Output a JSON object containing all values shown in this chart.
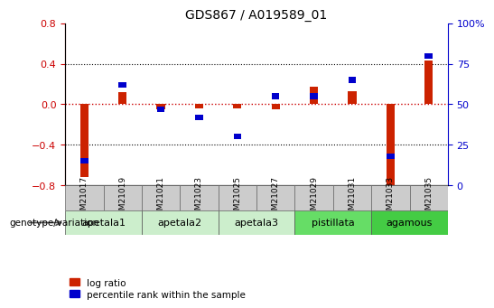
{
  "title": "GDS867 / A019589_01",
  "samples": [
    "GSM21017",
    "GSM21019",
    "GSM21021",
    "GSM21023",
    "GSM21025",
    "GSM21027",
    "GSM21029",
    "GSM21031",
    "GSM21033",
    "GSM21035"
  ],
  "log_ratio": [
    -0.72,
    0.12,
    -0.05,
    -0.04,
    -0.04,
    -0.05,
    0.17,
    0.13,
    -0.82,
    0.43
  ],
  "percentile_rank": [
    15,
    62,
    47,
    42,
    30,
    55,
    55,
    65,
    18,
    80
  ],
  "ylim": [
    -0.8,
    0.8
  ],
  "y2lim": [
    0,
    100
  ],
  "yticks": [
    -0.8,
    -0.4,
    0.0,
    0.4,
    0.8
  ],
  "y2ticks": [
    0,
    25,
    50,
    75,
    100
  ],
  "y_color": "#cc0000",
  "y2_color": "#0000cc",
  "bar_color_red": "#cc2200",
  "bar_color_blue": "#0000cc",
  "hline0_color": "#cc0000",
  "hline_color": "black",
  "groups": [
    {
      "name": "apetala1",
      "start": 0,
      "end": 2,
      "color": "#cceecc"
    },
    {
      "name": "apetala2",
      "start": 2,
      "end": 4,
      "color": "#cceecc"
    },
    {
      "name": "apetala3",
      "start": 4,
      "end": 6,
      "color": "#cceecc"
    },
    {
      "name": "pistillata",
      "start": 6,
      "end": 8,
      "color": "#66dd66"
    },
    {
      "name": "agamous",
      "start": 8,
      "end": 10,
      "color": "#44cc44"
    }
  ],
  "sample_box_color": "#cccccc",
  "legend_red": "log ratio",
  "legend_blue": "percentile rank within the sample",
  "genotype_label": "genotype/variation"
}
